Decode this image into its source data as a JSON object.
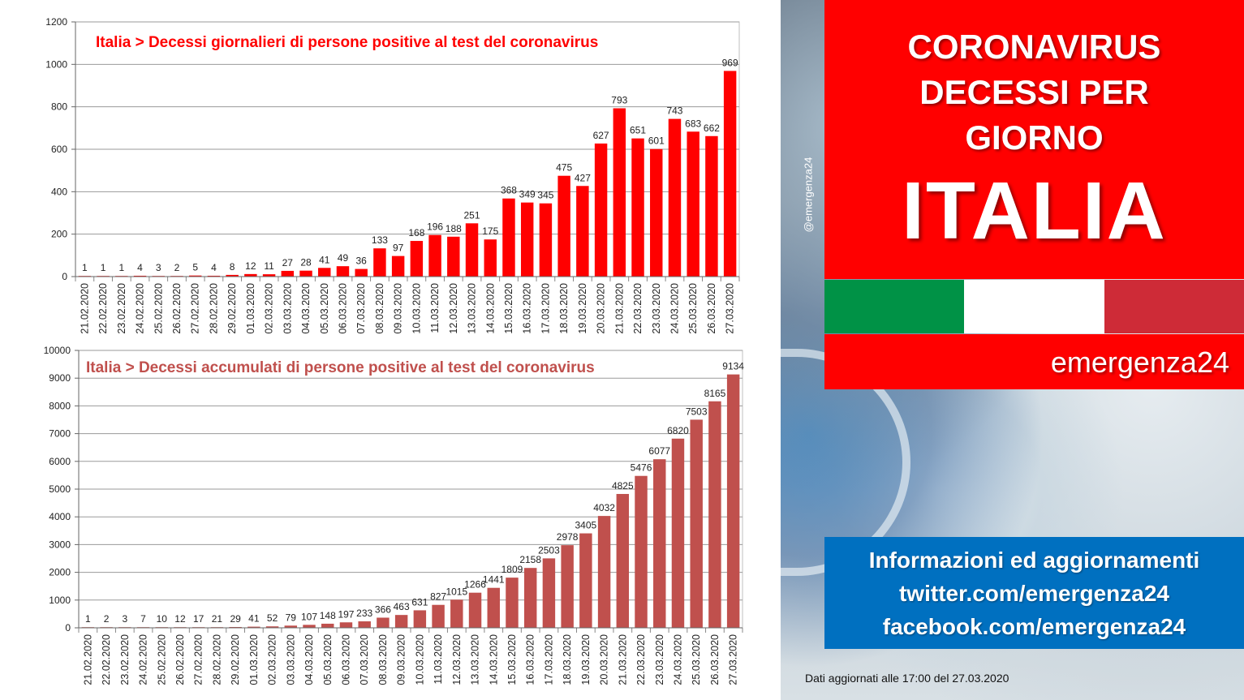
{
  "chart_data": [
    {
      "type": "bar",
      "title": "Italia > Decessi giornalieri di persone positive al test del coronavirus",
      "title_color": "#ff0000",
      "bar_color": "#ff0000",
      "ylim": [
        0,
        1200
      ],
      "yticks": [
        "0",
        "200",
        "400",
        "600",
        "800",
        "1000",
        "1200"
      ],
      "ytick_values": [
        0,
        200,
        400,
        600,
        800,
        1000,
        1200
      ],
      "grid": true,
      "categories": [
        "21.02.2020",
        "22.02.2020",
        "23.02.2020",
        "24.02.2020",
        "25.02.2020",
        "26.02.2020",
        "27.02.2020",
        "28.02.2020",
        "29.02.2020",
        "01.03.2020",
        "02.03.2020",
        "03.03.2020",
        "04.03.2020",
        "05.03.2020",
        "06.03.2020",
        "07.03.2020",
        "08.03.2020",
        "09.03.2020",
        "10.03.2020",
        "11.03.2020",
        "12.03.2020",
        "13.03.2020",
        "14.03.2020",
        "15.03.2020",
        "16.03.2020",
        "17.03.2020",
        "18.03.2020",
        "19.03.2020",
        "20.03.2020",
        "21.03.2020",
        "22.03.2020",
        "23.03.2020",
        "24.03.2020",
        "25.03.2020",
        "26.03.2020",
        "27.03.2020"
      ],
      "values": [
        1,
        1,
        1,
        4,
        3,
        2,
        5,
        4,
        8,
        12,
        11,
        27,
        28,
        41,
        49,
        36,
        133,
        97,
        168,
        196,
        188,
        251,
        175,
        368,
        349,
        345,
        475,
        427,
        627,
        793,
        651,
        601,
        743,
        683,
        662,
        969
      ],
      "labels": [
        "1",
        "1",
        "1",
        "4",
        "3",
        "2",
        "5",
        "4",
        "8",
        "12",
        "11",
        "27",
        "28",
        "41",
        "49",
        "36",
        "133",
        "97",
        "168",
        "196",
        "188",
        "251",
        "175",
        "368",
        "349",
        "345",
        "475",
        "427",
        "627",
        "793",
        "651",
        "601",
        "743",
        "683",
        "662",
        "969"
      ]
    },
    {
      "type": "bar",
      "title": "Italia > Decessi accumulati di persone positive al test del coronavirus",
      "title_color": "#c0504d",
      "bar_color": "#c0504d",
      "ylim": [
        0,
        10000
      ],
      "yticks": [
        "0",
        "1000",
        "2000",
        "3000",
        "4000",
        "5000",
        "6000",
        "7000",
        "8000",
        "9000",
        "10000"
      ],
      "ytick_values": [
        0,
        1000,
        2000,
        3000,
        4000,
        5000,
        6000,
        7000,
        8000,
        9000,
        10000
      ],
      "grid": true,
      "categories": [
        "21.02.2020",
        "22.02.2020",
        "23.02.2020",
        "24.02.2020",
        "25.02.2020",
        "26.02.2020",
        "27.02.2020",
        "28.02.2020",
        "29.02.2020",
        "01.03.2020",
        "02.03.2020",
        "03.03.2020",
        "04.03.2020",
        "05.03.2020",
        "06.03.2020",
        "07.03.2020",
        "08.03.2020",
        "09.03.2020",
        "10.03.2020",
        "11.03.2020",
        "12.03.2020",
        "13.03.2020",
        "14.03.2020",
        "15.03.2020",
        "16.03.2020",
        "17.03.2020",
        "18.03.2020",
        "19.03.2020",
        "20.03.2020",
        "21.03.2020",
        "22.03.2020",
        "23.03.2020",
        "24.03.2020",
        "25.03.2020",
        "26.03.2020",
        "27.03.2020"
      ],
      "values": [
        1,
        2,
        3,
        7,
        10,
        12,
        17,
        21,
        29,
        41,
        52,
        79,
        107,
        148,
        197,
        233,
        366,
        463,
        631,
        827,
        1015,
        1266,
        1441,
        1809,
        2158,
        2503,
        2978,
        3405,
        4032,
        4825,
        5476,
        6077,
        6820,
        7503,
        8165,
        9134
      ],
      "labels": [
        "1",
        "2",
        "3",
        "7",
        "10",
        "12",
        "17",
        "21",
        "29",
        "41",
        "52",
        "79",
        "107",
        "148",
        "197",
        "233",
        "366",
        "463",
        "631",
        "827",
        "1015",
        "1266",
        "1441",
        "1809",
        "2158",
        "2503",
        "2978",
        "3405",
        "4032",
        "4825",
        "5476",
        "6077",
        "6820",
        "7503",
        "8165",
        "9134"
      ]
    }
  ],
  "sidebar": {
    "handle": "@emergenza24",
    "headline_lines": [
      "CORONAVIRUS",
      "DECESSI PER",
      "GIORNO"
    ],
    "country": "ITALIA",
    "brand": "emergenza24",
    "info_lines": [
      "Informazioni ed aggiornamenti",
      "twitter.com/emergenza24",
      "facebook.com/emergenza24"
    ],
    "updated": "Dati aggiornati alle 17:00 del 27.03.2020",
    "flag_colors": [
      "#009246",
      "#ffffff",
      "#ce2b37"
    ],
    "accent_red": "#ff0000",
    "info_blue": "#0070c0"
  }
}
